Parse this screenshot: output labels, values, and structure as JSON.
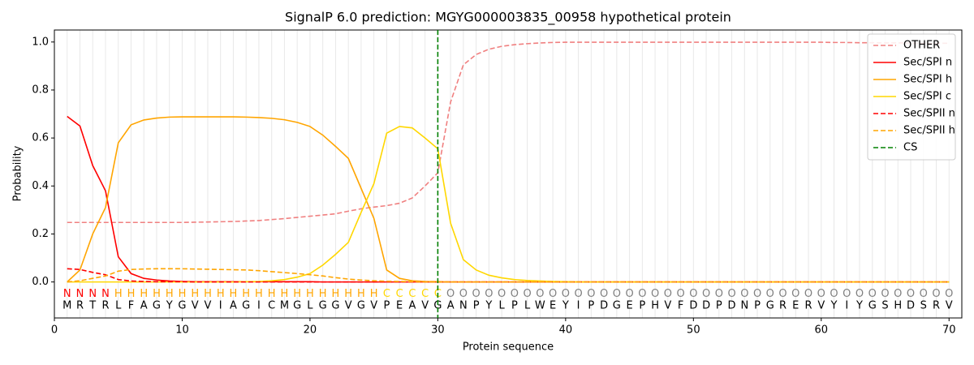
{
  "chart_data": {
    "type": "line",
    "title": "SignalP 6.0 prediction: MGYG000003835_00958 hypothetical protein",
    "x_label": "Protein sequence",
    "y_label": "Probability",
    "xlim": [
      0,
      71
    ],
    "ylim": [
      -0.15,
      1.05
    ],
    "xticks": [
      0,
      10,
      20,
      30,
      40,
      50,
      60,
      70
    ],
    "yticks": [
      {
        "value": 0,
        "label": "0.0"
      },
      {
        "value": 0.2,
        "label": "0.2"
      },
      {
        "value": 0.4,
        "label": "0.4"
      },
      {
        "value": 0.6,
        "label": "0.6"
      },
      {
        "value": 0.8,
        "label": "0.8"
      },
      {
        "value": 1,
        "label": "1.0"
      }
    ],
    "legend": "upper right",
    "x": [
      1,
      2,
      3,
      4,
      5,
      6,
      7,
      8,
      9,
      10,
      11,
      12,
      13,
      14,
      15,
      16,
      17,
      18,
      19,
      20,
      21,
      22,
      23,
      24,
      25,
      26,
      27,
      28,
      29,
      30,
      31,
      32,
      33,
      34,
      35,
      36,
      37,
      38,
      39,
      40,
      41,
      42,
      43,
      44,
      45,
      46,
      47,
      48,
      49,
      50,
      51,
      52,
      53,
      54,
      55,
      56,
      57,
      58,
      59,
      60,
      61,
      62,
      63,
      64,
      65,
      66,
      67,
      68,
      69,
      70
    ],
    "residues": [
      "M",
      "R",
      "T",
      "R",
      "L",
      "F",
      "A",
      "G",
      "Y",
      "G",
      "V",
      "V",
      "I",
      "A",
      "G",
      "I",
      "C",
      "M",
      "G",
      "L",
      "G",
      "G",
      "V",
      "G",
      "V",
      "P",
      "E",
      "A",
      "V",
      "G",
      "A",
      "N",
      "P",
      "Y",
      "L",
      "P",
      "L",
      "W",
      "E",
      "Y",
      "I",
      "P",
      "D",
      "G",
      "E",
      "P",
      "H",
      "V",
      "F",
      "D",
      "D",
      "P",
      "D",
      "N",
      "P",
      "G",
      "R",
      "E",
      "R",
      "V",
      "Y",
      "I",
      "Y",
      "G",
      "S",
      "H",
      "D",
      "S",
      "R",
      "V"
    ],
    "regions": [
      "N",
      "N",
      "N",
      "N",
      "H",
      "H",
      "H",
      "H",
      "H",
      "H",
      "H",
      "H",
      "H",
      "H",
      "H",
      "H",
      "H",
      "H",
      "H",
      "H",
      "H",
      "H",
      "H",
      "H",
      "H",
      "C",
      "C",
      "C",
      "C",
      "C",
      "O",
      "O",
      "O",
      "O",
      "O",
      "O",
      "O",
      "O",
      "O",
      "O",
      "O",
      "O",
      "O",
      "O",
      "O",
      "O",
      "O",
      "O",
      "O",
      "O",
      "O",
      "O",
      "O",
      "O",
      "O",
      "O",
      "O",
      "O",
      "O",
      "O",
      "O",
      "O",
      "O",
      "O",
      "O",
      "O",
      "O",
      "O",
      "O",
      "O"
    ],
    "region_colors": {
      "N": "#ff0000",
      "H": "#ffa500",
      "C": "#ffd700",
      "O": "#808080"
    },
    "series": [
      {
        "name": "OTHER",
        "color": "#f08080",
        "dashed": true,
        "values": [
          0.248,
          0.248,
          0.248,
          0.248,
          0.248,
          0.248,
          0.248,
          0.248,
          0.248,
          0.248,
          0.249,
          0.25,
          0.251,
          0.252,
          0.254,
          0.256,
          0.26,
          0.264,
          0.269,
          0.274,
          0.279,
          0.284,
          0.295,
          0.305,
          0.312,
          0.318,
          0.328,
          0.35,
          0.4,
          0.455,
          0.75,
          0.905,
          0.948,
          0.97,
          0.982,
          0.989,
          0.993,
          0.996,
          0.998,
          0.999,
          0.999,
          0.999,
          0.999,
          0.999,
          0.999,
          0.999,
          0.999,
          0.999,
          0.999,
          0.999,
          0.999,
          0.999,
          0.999,
          0.999,
          0.999,
          0.999,
          0.999,
          0.999,
          0.999,
          0.999,
          0.998,
          0.998,
          0.997,
          0.997,
          0.996,
          0.996,
          0.996,
          0.995,
          0.995,
          0.995
        ]
      },
      {
        "name": "Sec/SPI n",
        "color": "#ff0000",
        "dashed": false,
        "values": [
          0.69,
          0.65,
          0.485,
          0.38,
          0.105,
          0.035,
          0.015,
          0.008,
          0.004,
          0.002,
          0.001,
          0.001,
          0.001,
          0.001,
          0.001,
          0.001,
          0.001,
          0.001,
          0.001,
          0.001,
          0,
          0,
          0,
          0,
          0,
          0,
          0,
          0,
          0,
          0,
          0,
          0,
          0,
          0,
          0,
          0,
          0,
          0,
          0,
          0,
          0,
          0,
          0,
          0,
          0,
          0,
          0,
          0,
          0,
          0,
          0,
          0,
          0,
          0,
          0,
          0,
          0,
          0,
          0,
          0,
          0,
          0,
          0,
          0,
          0,
          0,
          0,
          0,
          0,
          0
        ]
      },
      {
        "name": "Sec/SPI h",
        "color": "#ffa500",
        "dashed": false,
        "values": [
          0,
          0.05,
          0.2,
          0.31,
          0.58,
          0.655,
          0.675,
          0.683,
          0.687,
          0.688,
          0.688,
          0.688,
          0.688,
          0.688,
          0.687,
          0.685,
          0.682,
          0.676,
          0.665,
          0.648,
          0.612,
          0.565,
          0.515,
          0.39,
          0.265,
          0.05,
          0.015,
          0.005,
          0.002,
          0.001,
          0,
          0,
          0,
          0,
          0,
          0,
          0,
          0,
          0,
          0,
          0,
          0,
          0,
          0,
          0,
          0,
          0,
          0,
          0,
          0,
          0,
          0,
          0,
          0,
          0,
          0,
          0,
          0,
          0,
          0,
          0,
          0,
          0,
          0,
          0,
          0,
          0,
          0,
          0,
          0
        ]
      },
      {
        "name": "Sec/SPI c",
        "color": "#ffd700",
        "dashed": false,
        "values": [
          0,
          0,
          0,
          0,
          0,
          0,
          0,
          0,
          0,
          0,
          0,
          0,
          0,
          0,
          0.001,
          0.002,
          0.005,
          0.01,
          0.02,
          0.035,
          0.07,
          0.115,
          0.165,
          0.29,
          0.41,
          0.62,
          0.648,
          0.642,
          0.6,
          0.555,
          0.245,
          0.093,
          0.05,
          0.028,
          0.017,
          0.01,
          0.006,
          0.004,
          0.002,
          0.001,
          0,
          0,
          0,
          0,
          0,
          0,
          0,
          0,
          0,
          0,
          0,
          0,
          0,
          0,
          0,
          0,
          0,
          0,
          0,
          0,
          0,
          0,
          0,
          0,
          0,
          0,
          0,
          0,
          0,
          0
        ]
      },
      {
        "name": "Sec/SPII n",
        "color": "#ff0000",
        "dashed": true,
        "values": [
          0.055,
          0.052,
          0.04,
          0.03,
          0.01,
          0.004,
          0.002,
          0.001,
          0.001,
          0.001,
          0,
          0,
          0,
          0,
          0,
          0,
          0,
          0,
          0,
          0,
          0,
          0,
          0,
          0,
          0,
          0,
          0,
          0,
          0,
          0,
          0,
          0,
          0,
          0,
          0,
          0,
          0,
          0,
          0,
          0,
          0,
          0,
          0,
          0,
          0,
          0,
          0,
          0,
          0,
          0,
          0,
          0,
          0,
          0,
          0,
          0,
          0,
          0,
          0,
          0,
          0,
          0,
          0,
          0,
          0,
          0,
          0,
          0,
          0,
          0
        ]
      },
      {
        "name": "Sec/SPII h",
        "color": "#ffa500",
        "dashed": true,
        "values": [
          0,
          0.005,
          0.015,
          0.025,
          0.045,
          0.052,
          0.054,
          0.055,
          0.055,
          0.055,
          0.054,
          0.053,
          0.052,
          0.051,
          0.05,
          0.047,
          0.043,
          0.039,
          0.035,
          0.03,
          0.025,
          0.018,
          0.012,
          0.008,
          0.005,
          0.003,
          0.002,
          0.001,
          0,
          0,
          0,
          0,
          0,
          0,
          0,
          0,
          0,
          0,
          0,
          0,
          0,
          0,
          0,
          0,
          0,
          0,
          0,
          0,
          0,
          0,
          0,
          0,
          0,
          0,
          0,
          0,
          0,
          0,
          0,
          0,
          0,
          0,
          0,
          0,
          0,
          0,
          0,
          0,
          0,
          0
        ]
      }
    ],
    "cleavage_site": {
      "name": "CS",
      "color": "#008000",
      "dashed": true,
      "x": 30
    }
  }
}
